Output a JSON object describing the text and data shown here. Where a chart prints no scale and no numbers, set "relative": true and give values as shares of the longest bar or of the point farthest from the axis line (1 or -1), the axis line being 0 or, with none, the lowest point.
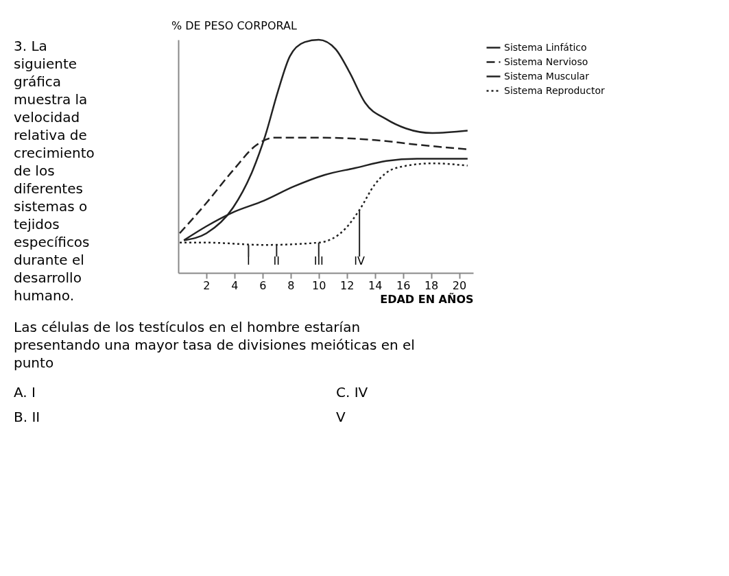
{
  "chart_data": {
    "type": "line",
    "relative": true,
    "ylabel": "% DE PESO CORPORAL",
    "xlabel": "EDAD EN AÑOS",
    "xlim": [
      0,
      21
    ],
    "xticks": [
      2,
      4,
      6,
      8,
      10,
      12,
      14,
      16,
      18,
      20
    ],
    "grid": false,
    "legend": "right",
    "series": [
      {
        "name": "Sistema Linfático",
        "color": "#222222",
        "line_style": "solid",
        "x": [
          0.4,
          2,
          3.9,
          5.3,
          6.2,
          7.1,
          7.95,
          9,
          10,
          11.2,
          12.2,
          13.3,
          14.8,
          16.2,
          18.1,
          20.6
        ],
        "values": [
          0.14,
          0.17,
          0.28,
          0.44,
          0.59,
          0.78,
          0.93,
          0.99,
          1,
          0.96,
          0.86,
          0.73,
          0.66,
          0.62,
          0.6,
          0.61
        ]
      },
      {
        "name": "Sistema Nervioso",
        "color": "#222222",
        "line_style": "dashed",
        "x": [
          0.1,
          2,
          3.9,
          5.6,
          6.8,
          10,
          14,
          17,
          20.6
        ],
        "values": [
          0.17,
          0.3,
          0.44,
          0.55,
          0.58,
          0.58,
          0.57,
          0.55,
          0.53
        ]
      },
      {
        "name": "Sistema Muscular",
        "color": "#222222",
        "line_style": "solid",
        "x": [
          0.4,
          2,
          3.9,
          6.1,
          8.2,
          10.4,
          12.6,
          14.8,
          17,
          20.6
        ],
        "values": [
          0.14,
          0.2,
          0.26,
          0.31,
          0.37,
          0.42,
          0.45,
          0.48,
          0.49,
          0.49
        ]
      },
      {
        "name": "Sistema Reproductor",
        "color": "#222222",
        "line_style": "dotted",
        "x": [
          0.1,
          2,
          6.1,
          10,
          11.9,
          12.9,
          14,
          15.5,
          18.1,
          20.6
        ],
        "values": [
          0.13,
          0.13,
          0.12,
          0.13,
          0.19,
          0.27,
          0.38,
          0.45,
          0.47,
          0.46
        ]
      }
    ],
    "annotations": [
      "3. La\nsiguiente\ngráfica\nmuestra la\nvelocidad\nrelativa de\ncrecimiento\nde los\ndiferentes\nsistemas o\ntejidos\nespecíficos\ndurante el\ndesarrollo\nhumano.",
      {
        "text": "I",
        "x": 5,
        "y": 0.12
      },
      {
        "text": "II",
        "x": 7,
        "y": 0.12
      },
      {
        "text": "III",
        "x": 10,
        "y": 0.13
      },
      {
        "text": "IV",
        "x": 12.9,
        "y": 0.27
      },
      "Las células de los testículos en el hombre estarían\npresentando una mayor tasa de divisiones meióticas en el\npunto",
      "A. I",
      "B. II",
      "C. IV",
      "V"
    ]
  }
}
